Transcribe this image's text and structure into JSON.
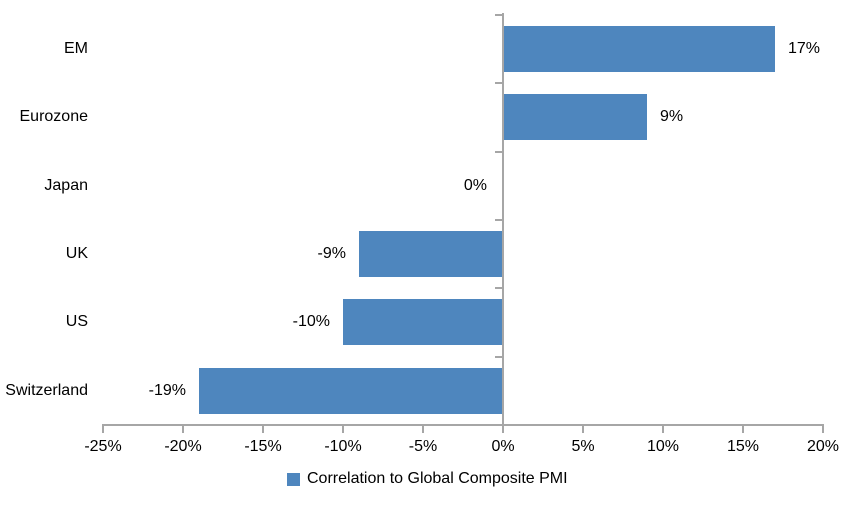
{
  "chart_data": {
    "type": "bar",
    "orientation": "horizontal",
    "title": "",
    "categories": [
      "EM",
      "Eurozone",
      "Japan",
      "UK",
      "US",
      "Switzerland"
    ],
    "values": [
      17,
      9,
      0,
      -9,
      -10,
      -19
    ],
    "value_labels": [
      "17%",
      "9%",
      "0%",
      "-9%",
      "-10%",
      "-19%"
    ],
    "series_name": "Correlation to Global Composite PMI",
    "x_tick_labels": [
      "-25%",
      "-20%",
      "-15%",
      "-10%",
      "-5%",
      "0%",
      "5%",
      "10%",
      "15%",
      "20%"
    ],
    "x_tick_values": [
      -25,
      -20,
      -15,
      -10,
      -5,
      0,
      5,
      10,
      15,
      20
    ],
    "xlim": [
      -25,
      20
    ],
    "grid": false,
    "legend_position": "bottom",
    "bar_color": "#4E86BE",
    "axis_color": "#A6A6A6",
    "text_color": "#000000"
  },
  "legend": {
    "label": "Correlation to Global Composite PMI",
    "marker_color": "#4E86BE"
  }
}
